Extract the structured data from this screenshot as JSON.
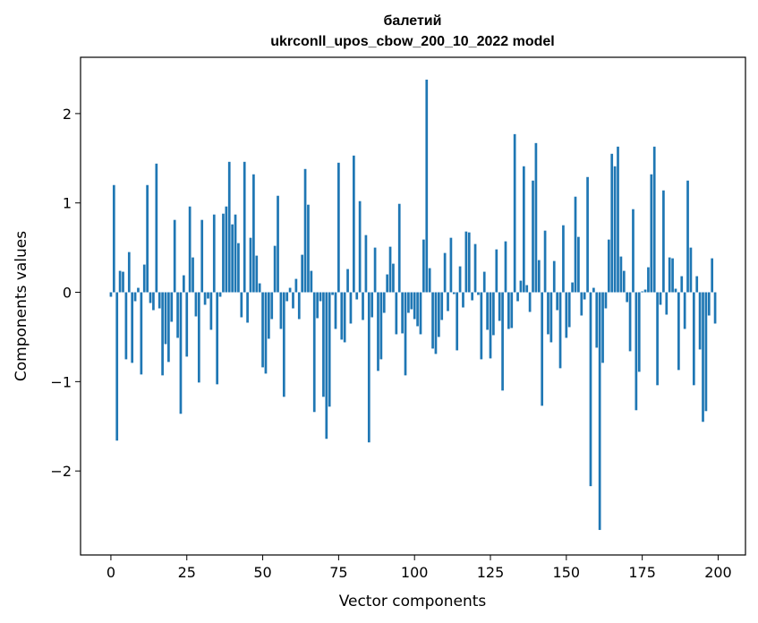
{
  "chart_data": {
    "type": "bar",
    "title_line1": "балетий",
    "title_line2": "ukrconll_upos_cbow_200_10_2022 model",
    "xlabel": "Vector components",
    "ylabel": "Components values",
    "xlim": [
      -10,
      209
    ],
    "ylim": [
      -2.94,
      2.63
    ],
    "xticks": [
      0,
      25,
      50,
      75,
      100,
      125,
      150,
      175,
      200
    ],
    "yticks": [
      -2,
      -1,
      0,
      1,
      2
    ],
    "ytick_labels": [
      "−2",
      "−1",
      "0",
      "1",
      "2"
    ],
    "grid": false,
    "legend": "none",
    "bar_color": "#1f77b4",
    "values": [
      -0.05,
      1.2,
      -1.66,
      0.24,
      0.23,
      -0.75,
      0.45,
      -0.79,
      -0.1,
      0.05,
      -0.92,
      0.31,
      1.2,
      -0.12,
      -0.2,
      1.44,
      -0.18,
      -0.93,
      -0.58,
      -0.78,
      -0.33,
      0.81,
      -0.51,
      -1.36,
      0.19,
      -0.72,
      0.96,
      0.39,
      -0.27,
      -1.01,
      0.81,
      -0.14,
      -0.07,
      -0.42,
      0.87,
      -1.03,
      -0.05,
      0.88,
      0.96,
      1.46,
      0.76,
      0.87,
      0.55,
      -0.28,
      1.46,
      -0.34,
      0.61,
      1.32,
      0.41,
      0.1,
      -0.84,
      -0.91,
      -0.52,
      -0.3,
      0.52,
      1.08,
      -0.41,
      -1.17,
      -0.1,
      0.05,
      -0.18,
      0.15,
      -0.3,
      0.42,
      1.38,
      0.98,
      0.24,
      -1.34,
      -0.29,
      -0.1,
      -1.17,
      -1.64,
      -1.28,
      -0.03,
      -0.41,
      1.45,
      -0.53,
      -0.56,
      0.26,
      -0.35,
      1.53,
      -0.08,
      1.02,
      -0.31,
      0.64,
      -1.68,
      -0.28,
      0.5,
      -0.88,
      -0.75,
      -0.23,
      0.2,
      0.51,
      0.32,
      -0.47,
      0.99,
      -0.46,
      -0.93,
      -0.23,
      -0.19,
      -0.3,
      -0.38,
      -0.47,
      0.59,
      2.38,
      0.27,
      -0.63,
      -0.69,
      -0.5,
      -0.31,
      0.44,
      -0.21,
      0.61,
      -0.02,
      -0.65,
      0.29,
      -0.17,
      0.68,
      0.67,
      -0.09,
      0.54,
      -0.03,
      -0.75,
      0.23,
      -0.42,
      -0.74,
      -0.48,
      0.48,
      -0.32,
      -1.1,
      0.57,
      -0.41,
      -0.4,
      1.77,
      -0.1,
      0.13,
      1.41,
      0.08,
      -0.22,
      1.25,
      1.67,
      0.36,
      -1.27,
      0.69,
      -0.47,
      -0.56,
      0.35,
      -0.2,
      -0.85,
      0.75,
      -0.51,
      -0.39,
      0.11,
      1.07,
      0.62,
      -0.26,
      -0.08,
      1.29,
      -2.17,
      0.05,
      -0.62,
      -2.66,
      -0.79,
      -0.18,
      0.59,
      1.55,
      1.41,
      1.63,
      0.4,
      0.24,
      -0.11,
      -0.66,
      0.93,
      -1.32,
      -0.89,
      0.01,
      0.03,
      0.28,
      1.32,
      1.63,
      -1.04,
      -0.14,
      1.14,
      -0.25,
      0.39,
      0.38,
      0.04,
      -0.87,
      0.18,
      -0.41,
      1.25,
      0.5,
      -1.04,
      0.18,
      -0.64,
      -1.45,
      -1.33,
      -0.26,
      0.38,
      -0.35
    ]
  }
}
